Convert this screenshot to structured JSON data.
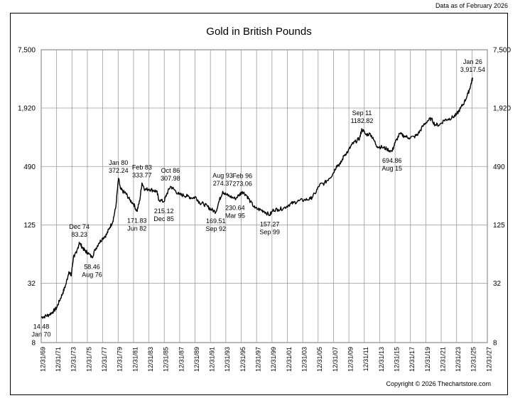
{
  "header": {
    "as_of": "Data as of February 2026"
  },
  "footer": {
    "copyright": "Copyright © 2026 Thechartstore.com"
  },
  "chart_data": {
    "type": "line",
    "title": "Gold in British Pounds",
    "scale": "log",
    "grid": true,
    "ylim": [
      8,
      7500
    ],
    "y_ticks": [
      8,
      32,
      125,
      490,
      1920,
      7500
    ],
    "y_tick_labels": [
      "8",
      "32",
      "125",
      "490",
      "1,920",
      "7,500"
    ],
    "x_tick_labels": [
      "12/31/69",
      "12/31/71",
      "12/31/73",
      "12/31/75",
      "12/31/77",
      "12/31/79",
      "12/31/81",
      "12/31/83",
      "12/31/85",
      "12/31/87",
      "12/31/89",
      "12/31/91",
      "12/31/93",
      "12/31/95",
      "12/31/97",
      "12/31/99",
      "12/31/01",
      "12/31/03",
      "12/31/05",
      "12/31/07",
      "12/31/09",
      "12/31/11",
      "12/31/13",
      "12/31/15",
      "12/31/17",
      "12/31/19",
      "12/31/21",
      "12/31/23",
      "12/31/25",
      "12/31/27"
    ],
    "xlim": [
      1970.0,
      2028.0
    ],
    "series": [
      {
        "values": [
          [
            1970.0,
            14.48
          ],
          [
            1970.5,
            14.8
          ],
          [
            1971.0,
            15.3
          ],
          [
            1971.5,
            16.4
          ],
          [
            1972.0,
            18.0
          ],
          [
            1972.4,
            21.5
          ],
          [
            1972.8,
            25.5
          ],
          [
            1973.2,
            31
          ],
          [
            1973.6,
            42
          ],
          [
            1973.9,
            38
          ],
          [
            1974.2,
            60
          ],
          [
            1974.6,
            65
          ],
          [
            1974.95,
            83.23
          ],
          [
            1975.3,
            75
          ],
          [
            1975.7,
            68
          ],
          [
            1976.0,
            66
          ],
          [
            1976.6,
            58.46
          ],
          [
            1977.0,
            70
          ],
          [
            1977.5,
            82
          ],
          [
            1978.0,
            92
          ],
          [
            1978.5,
            100
          ],
          [
            1978.9,
            118
          ],
          [
            1979.3,
            135
          ],
          [
            1979.7,
            190
          ],
          [
            1980.05,
            372.24
          ],
          [
            1980.3,
            290
          ],
          [
            1980.7,
            270
          ],
          [
            1981.0,
            262
          ],
          [
            1981.5,
            225
          ],
          [
            1982.0,
            205
          ],
          [
            1982.45,
            171.83
          ],
          [
            1982.8,
            220
          ],
          [
            1983.1,
            333.77
          ],
          [
            1983.5,
            285
          ],
          [
            1984.0,
            290
          ],
          [
            1984.6,
            280
          ],
          [
            1985.0,
            275
          ],
          [
            1985.3,
            225
          ],
          [
            1985.95,
            215.12
          ],
          [
            1986.3,
            255
          ],
          [
            1986.8,
            307.98
          ],
          [
            1987.3,
            285
          ],
          [
            1987.9,
            255
          ],
          [
            1988.5,
            250
          ],
          [
            1989.0,
            245
          ],
          [
            1989.6,
            235
          ],
          [
            1990.1,
            240
          ],
          [
            1990.6,
            210
          ],
          [
            1991.1,
            205
          ],
          [
            1991.7,
            190
          ],
          [
            1992.05,
            180
          ],
          [
            1992.7,
            169.51
          ],
          [
            1993.1,
            215
          ],
          [
            1993.6,
            274.37
          ],
          [
            1994.0,
            255
          ],
          [
            1994.5,
            245
          ],
          [
            1995.2,
            230.64
          ],
          [
            1995.8,
            255
          ],
          [
            1996.15,
            273.06
          ],
          [
            1996.7,
            250
          ],
          [
            1997.2,
            215
          ],
          [
            1997.8,
            185
          ],
          [
            1998.5,
            178
          ],
          [
            1999.0,
            172
          ],
          [
            1999.7,
            157.27
          ],
          [
            2000.2,
            178
          ],
          [
            2000.8,
            180
          ],
          [
            2001.5,
            185
          ],
          [
            2002.2,
            200
          ],
          [
            2002.8,
            210
          ],
          [
            2003.5,
            220
          ],
          [
            2004.3,
            225
          ],
          [
            2005.0,
            230
          ],
          [
            2005.6,
            260
          ],
          [
            2006.2,
            320
          ],
          [
            2006.8,
            330
          ],
          [
            2007.4,
            370
          ],
          [
            2007.9,
            410
          ],
          [
            2008.4,
            500
          ],
          [
            2008.9,
            520
          ],
          [
            2009.4,
            640
          ],
          [
            2009.9,
            700
          ],
          [
            2010.4,
            820
          ],
          [
            2010.9,
            880
          ],
          [
            2011.4,
            950
          ],
          [
            2011.7,
            1182.82
          ],
          [
            2012.2,
            1030
          ],
          [
            2012.8,
            1050
          ],
          [
            2013.2,
            920
          ],
          [
            2013.7,
            780
          ],
          [
            2014.3,
            770
          ],
          [
            2014.9,
            740
          ],
          [
            2015.6,
            694.86
          ],
          [
            2016.0,
            850
          ],
          [
            2016.6,
            1050
          ],
          [
            2017.2,
            1000
          ],
          [
            2017.8,
            960
          ],
          [
            2018.5,
            980
          ],
          [
            2019.0,
            1050
          ],
          [
            2019.6,
            1250
          ],
          [
            2020.2,
            1420
          ],
          [
            2020.7,
            1500
          ],
          [
            2021.2,
            1300
          ],
          [
            2021.8,
            1300
          ],
          [
            2022.4,
            1450
          ],
          [
            2022.9,
            1480
          ],
          [
            2023.5,
            1550
          ],
          [
            2024.0,
            1650
          ],
          [
            2024.5,
            1900
          ],
          [
            2025.0,
            2200
          ],
          [
            2025.5,
            2700
          ],
          [
            2025.85,
            3300
          ],
          [
            2026.1,
            3917.54
          ]
        ]
      }
    ],
    "annotations": [
      {
        "x": 1970.0,
        "y": 14.48,
        "lines": [
          "14.48",
          "Jan 70"
        ],
        "side": "below"
      },
      {
        "x": 1974.95,
        "y": 83.23,
        "lines": [
          "Dec 74",
          "83.23"
        ],
        "side": "above"
      },
      {
        "x": 1976.6,
        "y": 58.46,
        "lines": [
          "58.46",
          "Aug 76"
        ],
        "side": "below"
      },
      {
        "x": 1980.05,
        "y": 372.24,
        "lines": [
          "Jan 80",
          "372.24"
        ],
        "side": "above"
      },
      {
        "x": 1982.45,
        "y": 171.83,
        "lines": [
          "171.83",
          "Jun 82"
        ],
        "side": "below"
      },
      {
        "x": 1983.1,
        "y": 333.77,
        "lines": [
          "Feb 83",
          "333.77"
        ],
        "side": "above"
      },
      {
        "x": 1985.95,
        "y": 215.12,
        "lines": [
          "215.12",
          "Dec 85"
        ],
        "side": "below"
      },
      {
        "x": 1986.8,
        "y": 307.98,
        "lines": [
          "Oct 86",
          "307.98"
        ],
        "side": "above"
      },
      {
        "x": 1992.7,
        "y": 169.51,
        "lines": [
          "169.51",
          "Sep 92"
        ],
        "side": "below"
      },
      {
        "x": 1993.6,
        "y": 274.37,
        "lines": [
          "Aug 93",
          "274.37"
        ],
        "side": "above"
      },
      {
        "x": 1995.2,
        "y": 230.64,
        "lines": [
          "230.64",
          "Mar 95"
        ],
        "side": "below"
      },
      {
        "x": 1996.15,
        "y": 273.06,
        "lines": [
          "Feb 96",
          "273.06"
        ],
        "side": "above"
      },
      {
        "x": 1999.7,
        "y": 157.27,
        "lines": [
          "157.27",
          "Sep 99"
        ],
        "side": "below"
      },
      {
        "x": 2011.7,
        "y": 1182.82,
        "lines": [
          "Sep 11",
          "1182.82"
        ],
        "side": "above"
      },
      {
        "x": 2015.6,
        "y": 694.86,
        "lines": [
          "694.86",
          "Aug 15"
        ],
        "side": "below"
      },
      {
        "x": 2026.1,
        "y": 3917.54,
        "lines": [
          "Jan 26",
          "3,917.54"
        ],
        "side": "above"
      }
    ]
  }
}
